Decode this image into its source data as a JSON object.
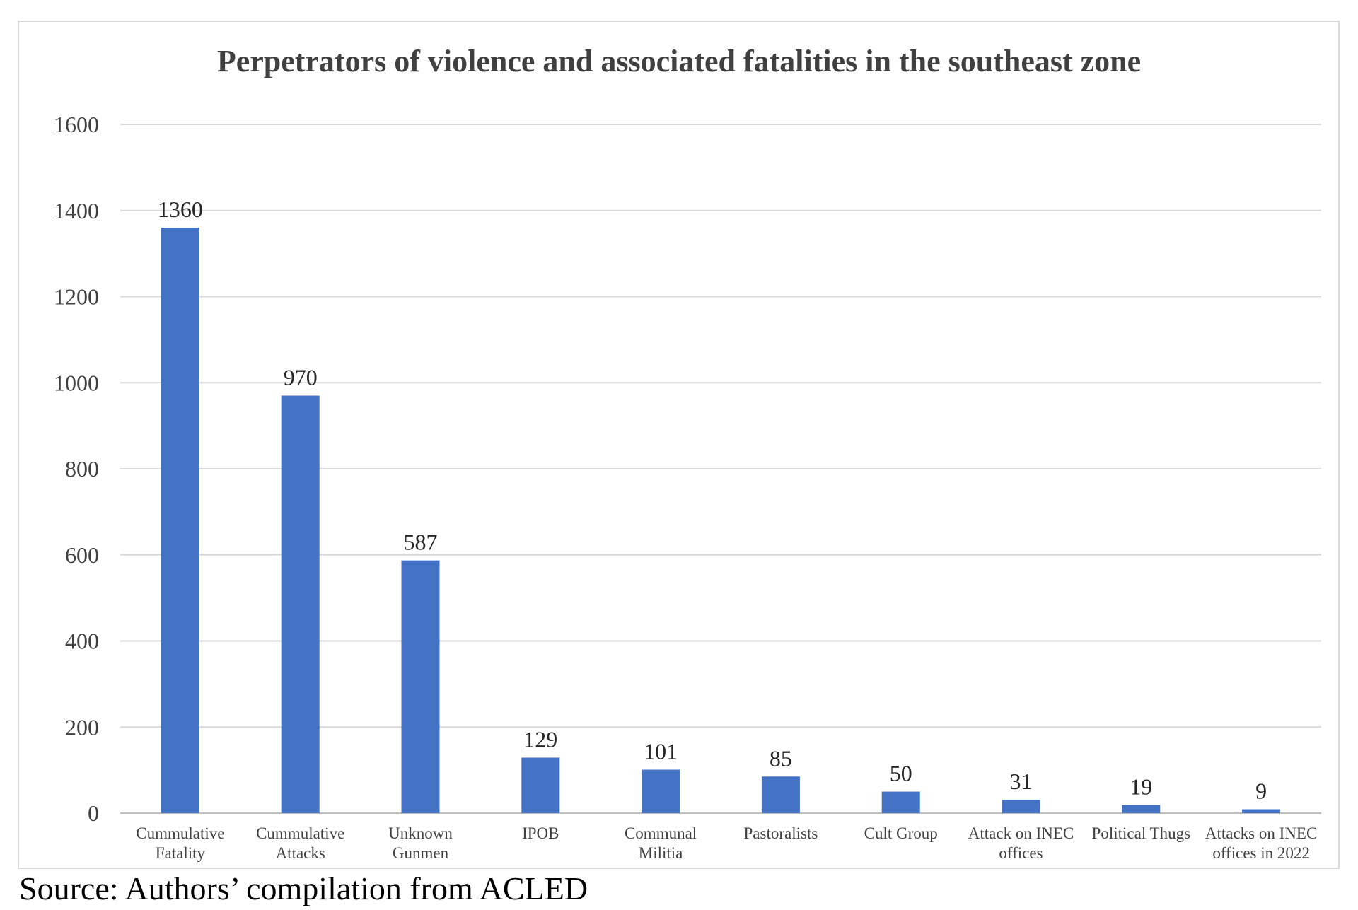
{
  "chart_data": {
    "type": "bar",
    "title": "Perpetrators of violence and associated fatalities in the southeast zone",
    "xlabel": "",
    "ylabel": "",
    "ylim": [
      0,
      1600
    ],
    "yticks": [
      0,
      200,
      400,
      600,
      800,
      1000,
      1200,
      1400,
      1600
    ],
    "grid": true,
    "legend": "none",
    "bar_color": "#4472c4",
    "categories": [
      [
        "Cummulative",
        "Fatality"
      ],
      [
        "Cummulative",
        "Attacks"
      ],
      [
        "Unknown",
        "Gunmen"
      ],
      [
        "IPOB"
      ],
      [
        "Communal",
        "Militia"
      ],
      [
        "Pastoralists"
      ],
      [
        "Cult Group"
      ],
      [
        "Attack on INEC",
        "offices"
      ],
      [
        "Political Thugs"
      ],
      [
        "Attacks on INEC",
        "offices in 2022"
      ]
    ],
    "values": [
      1360,
      970,
      587,
      129,
      101,
      85,
      50,
      31,
      19,
      9
    ]
  },
  "source": {
    "text": "Source: Authors’ compilation from ACLED"
  }
}
